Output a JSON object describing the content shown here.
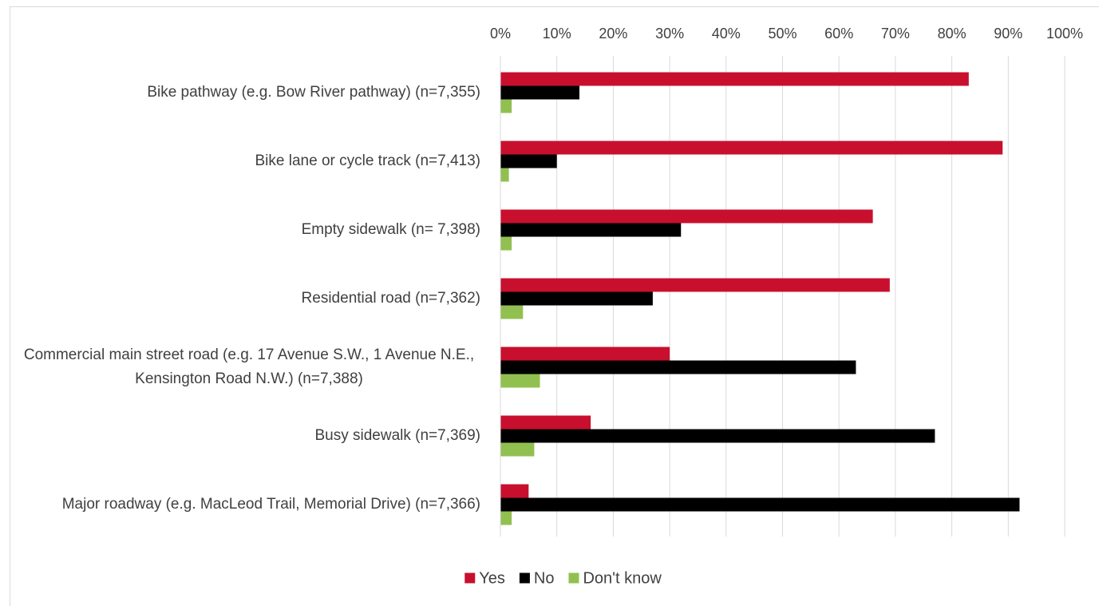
{
  "chart_data": {
    "type": "hbar",
    "categories": [
      "Bike pathway (e.g. Bow River pathway) (n=7,355)",
      "Bike lane or cycle track (n=7,413)",
      "Empty sidewalk (n= 7,398)",
      "Residential road (n=7,362)",
      "Commercial main street road (e.g. 17 Avenue S.W., 1 Avenue N.E., Kensington Road N.W.) (n=7,388)",
      "Busy sidewalk (n=7,369)",
      "Major roadway (e.g. MacLeod Trail, Memorial Drive) (n=7,366)"
    ],
    "series": [
      {
        "name": "Yes",
        "color": "#c8102e",
        "values": [
          83,
          89,
          66,
          69,
          30,
          16,
          5
        ]
      },
      {
        "name": "No",
        "color": "#000000",
        "values": [
          14,
          10,
          32,
          27,
          63,
          77,
          92
        ]
      },
      {
        "name": "Don't know",
        "color": "#92c050",
        "values": [
          2,
          1.5,
          2,
          4,
          7,
          6,
          2
        ]
      }
    ],
    "xlim": [
      0,
      100
    ],
    "xticks": [
      {
        "value": 0,
        "label": "0%"
      },
      {
        "value": 10,
        "label": "10%"
      },
      {
        "value": 20,
        "label": "20%"
      },
      {
        "value": 30,
        "label": "30%"
      },
      {
        "value": 40,
        "label": "40%"
      },
      {
        "value": 50,
        "label": "50%"
      },
      {
        "value": 60,
        "label": "60%"
      },
      {
        "value": 70,
        "label": "70%"
      },
      {
        "value": 80,
        "label": "80%"
      },
      {
        "value": 90,
        "label": "90%"
      },
      {
        "value": 100,
        "label": "100%"
      }
    ],
    "grid": true,
    "legend": "bottom"
  }
}
